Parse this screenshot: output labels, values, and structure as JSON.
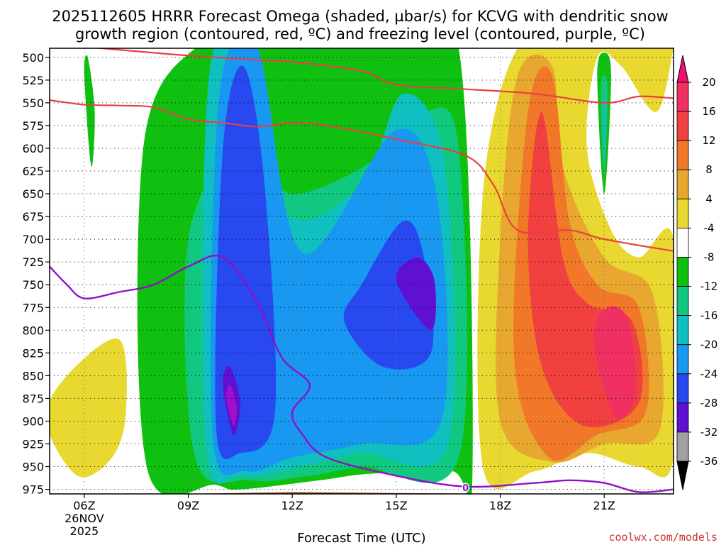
{
  "header": {
    "title_line1": "2025112605 HRRR Forecast Omega (shaded, µbar/s) for KCVG with dendritic snow",
    "title_line2": "growth region (contoured, red, ºC) and freezing level (contoured, purple, ºC)"
  },
  "credit": "coolwx.com/models",
  "chart_data": {
    "type": "heatmap",
    "title": "2025112605 HRRR Forecast Omega (shaded, µbar/s) for KCVG with dendritic snow growth region (contoured, red, ºC) and freezing level (contoured, purple, ºC)",
    "xlabel": "Forecast Time (UTC)",
    "ylabel": "",
    "x_hours_range": [
      5,
      23
    ],
    "y_pressure_range": [
      980,
      490
    ],
    "y_ticks": [
      500,
      525,
      550,
      575,
      600,
      625,
      650,
      675,
      700,
      725,
      750,
      775,
      800,
      825,
      850,
      875,
      900,
      925,
      950,
      975
    ],
    "x_ticks": [
      {
        "hour": 6,
        "label": "06Z",
        "sub1": "26NOV",
        "sub2": "2025"
      },
      {
        "hour": 9,
        "label": "09Z",
        "sub1": "",
        "sub2": ""
      },
      {
        "hour": 12,
        "label": "12Z",
        "sub1": "",
        "sub2": ""
      },
      {
        "hour": 15,
        "label": "15Z",
        "sub1": "",
        "sub2": ""
      },
      {
        "hour": 18,
        "label": "18Z",
        "sub1": "",
        "sub2": ""
      },
      {
        "hour": 21,
        "label": "21Z",
        "sub1": "",
        "sub2": ""
      }
    ],
    "grid": true,
    "colorbar": {
      "levels": [
        20,
        16,
        12,
        8,
        4,
        -4,
        -8,
        -12,
        -16,
        -20,
        -24,
        -28,
        -32,
        -36
      ],
      "colors": [
        "#f03060",
        "#f04040",
        "#f07828",
        "#e8a830",
        "#e8d830",
        "#ffffff",
        "#10c010",
        "#10c880",
        "#10c0c0",
        "#1898f0",
        "#2848f0",
        "#6010d0",
        "#a010c8",
        "#a0a0a0"
      ],
      "top_color": "#f01070",
      "bottom_color": "#000000"
    },
    "omega_blobs": [
      {
        "x": [
          7.8,
          9.8,
          10.5,
          12.8,
          14.2,
          16.6,
          17.2,
          16.8,
          15.0,
          11.0,
          9.2,
          7.7
        ],
        "p": [
          950,
          970,
          975,
          965,
          958,
          955,
          955,
          490,
          490,
          490,
          490,
          600
        ],
        "color": "#10c010"
      },
      {
        "x": [
          9.2,
          10.8,
          12.5,
          14.0,
          16.8,
          16.8,
          15.8,
          14.5,
          12.0,
          10.5,
          9.0
        ],
        "p": [
          940,
          965,
          960,
          950,
          940,
          600,
          560,
          610,
          650,
          600,
          700
        ],
        "color": "#10c880"
      },
      {
        "x": [
          9.5,
          10.6,
          12.3,
          14.0,
          16.5,
          16.4,
          15.2,
          14.0,
          11.8,
          10.8,
          9.6
        ],
        "p": [
          925,
          960,
          950,
          935,
          925,
          620,
          540,
          640,
          670,
          490,
          520
        ],
        "color": "#10c0c0"
      },
      {
        "x": [
          9.7,
          10.7,
          12.0,
          14.0,
          16.3,
          16.2,
          15.0,
          12.3,
          11.0,
          9.9
        ],
        "p": [
          915,
          955,
          940,
          925,
          900,
          660,
          580,
          715,
          490,
          540
        ],
        "color": "#1898f0"
      },
      {
        "x": [
          9.8,
          10.5,
          11.5,
          11.2,
          10.6,
          10.0
        ],
        "p": [
          905,
          935,
          890,
          640,
          510,
          600
        ],
        "color": "#2848f0"
      },
      {
        "x": [
          13.5,
          14.6,
          16.0,
          15.8,
          15.2,
          14.0
        ],
        "p": [
          790,
          840,
          825,
          720,
          680,
          750
        ],
        "color": "#2848f0"
      },
      {
        "x": [
          10.0,
          10.3,
          10.5,
          10.2
        ],
        "p": [
          860,
          915,
          880,
          840
        ],
        "color": "#6010d0"
      },
      {
        "x": [
          15.0,
          16.0,
          16.1,
          15.6
        ],
        "p": [
          745,
          800,
          745,
          720
        ],
        "color": "#6010d0"
      },
      {
        "x": [
          10.1,
          10.3,
          10.4,
          10.2
        ],
        "p": [
          875,
          905,
          885,
          860
        ],
        "color": "#a010c8"
      },
      {
        "x": [
          6.0,
          6.2,
          6.3,
          6.1
        ],
        "p": [
          520,
          620,
          560,
          500
        ],
        "color": "#10c010"
      },
      {
        "x": [
          4.9,
          5.8,
          6.8,
          7.2,
          7.0,
          5.5
        ],
        "p": [
          900,
          960,
          940,
          890,
          810,
          850
        ],
        "color": "#e8d830"
      },
      {
        "x": [
          17.5,
          19.0,
          20.5,
          22.0,
          23.0,
          23.0,
          22.0,
          21.2,
          20.5,
          20.8,
          21.5,
          22.5,
          23.0,
          23.0,
          20.0,
          18.5,
          17.5
        ],
        "p": [
          950,
          955,
          935,
          950,
          940,
          700,
          720,
          690,
          600,
          500,
          510,
          560,
          490,
          490,
          490,
          490,
          650
        ],
        "color": "#e8d830"
      },
      {
        "x": [
          18.0,
          19.5,
          21.0,
          22.6,
          22.4,
          21.0,
          19.8,
          19.5,
          18.5,
          18.0
        ],
        "p": [
          900,
          945,
          925,
          910,
          760,
          720,
          620,
          510,
          520,
          700
        ],
        "color": "#e8a830"
      },
      {
        "x": [
          18.4,
          19.4,
          20.8,
          22.2,
          22.0,
          20.8,
          20.0,
          19.5,
          18.8
        ],
        "p": [
          830,
          940,
          915,
          890,
          775,
          750,
          680,
          520,
          560
        ],
        "color": "#f07828"
      },
      {
        "x": [
          18.8,
          19.2,
          20.4,
          22.0,
          21.8,
          20.5,
          19.8,
          19.2
        ],
        "p": [
          700,
          840,
          905,
          880,
          790,
          770,
          720,
          560
        ],
        "color": "#f04040"
      },
      {
        "x": [
          20.7,
          21.3,
          21.9,
          21.7,
          21.1
        ],
        "p": [
          810,
          895,
          870,
          790,
          775
        ],
        "color": "#f03060"
      },
      {
        "x": [
          20.8,
          21.0,
          21.2,
          21.0
        ],
        "p": [
          520,
          650,
          520,
          495
        ],
        "color": "#10c010"
      },
      {
        "x": [
          20.9,
          21.0,
          21.1,
          21.0
        ],
        "p": [
          540,
          630,
          540,
          520
        ],
        "color": "#10c880"
      },
      {
        "x": [
          20.95,
          21.0,
          21.05,
          21.0
        ],
        "p": [
          560,
          620,
          560,
          545
        ],
        "color": "#10c0c0"
      }
    ],
    "snow_growth_contours": [
      {
        "x": [
          5,
          8,
          9,
          11,
          12,
          14,
          15,
          17,
          19,
          21,
          22,
          23
        ],
        "p": [
          485,
          495,
          498,
          503,
          505,
          515,
          530,
          535,
          540,
          550,
          543,
          545
        ],
        "color": "#e84040"
      },
      {
        "x": [
          5,
          6,
          7,
          8,
          9,
          10,
          11,
          12,
          13,
          15,
          17,
          17.8,
          18.5,
          20,
          21,
          23
        ],
        "p": [
          547,
          552,
          553,
          555,
          568,
          572,
          576,
          572,
          575,
          590,
          608,
          640,
          690,
          690,
          700,
          713
        ],
        "color": "#e84040"
      }
    ],
    "freezing_level_contour": {
      "x": [
        5,
        5.5,
        6,
        7,
        8,
        9,
        10,
        11,
        11.7,
        12.5,
        12.0,
        12.3,
        13,
        15,
        17,
        19,
        20,
        21,
        22,
        23
      ],
      "p": [
        730,
        750,
        765,
        758,
        750,
        730,
        720,
        770,
        830,
        860,
        890,
        915,
        940,
        960,
        972,
        968,
        965,
        968,
        978,
        975
      ],
      "color": "#9010c8",
      "label": "0"
    },
    "ground": {
      "x": [
        5,
        9,
        12,
        15,
        18,
        21,
        23
      ],
      "p": [
        982,
        980,
        978,
        979,
        980,
        982,
        982
      ],
      "color": "#a0522d"
    }
  }
}
